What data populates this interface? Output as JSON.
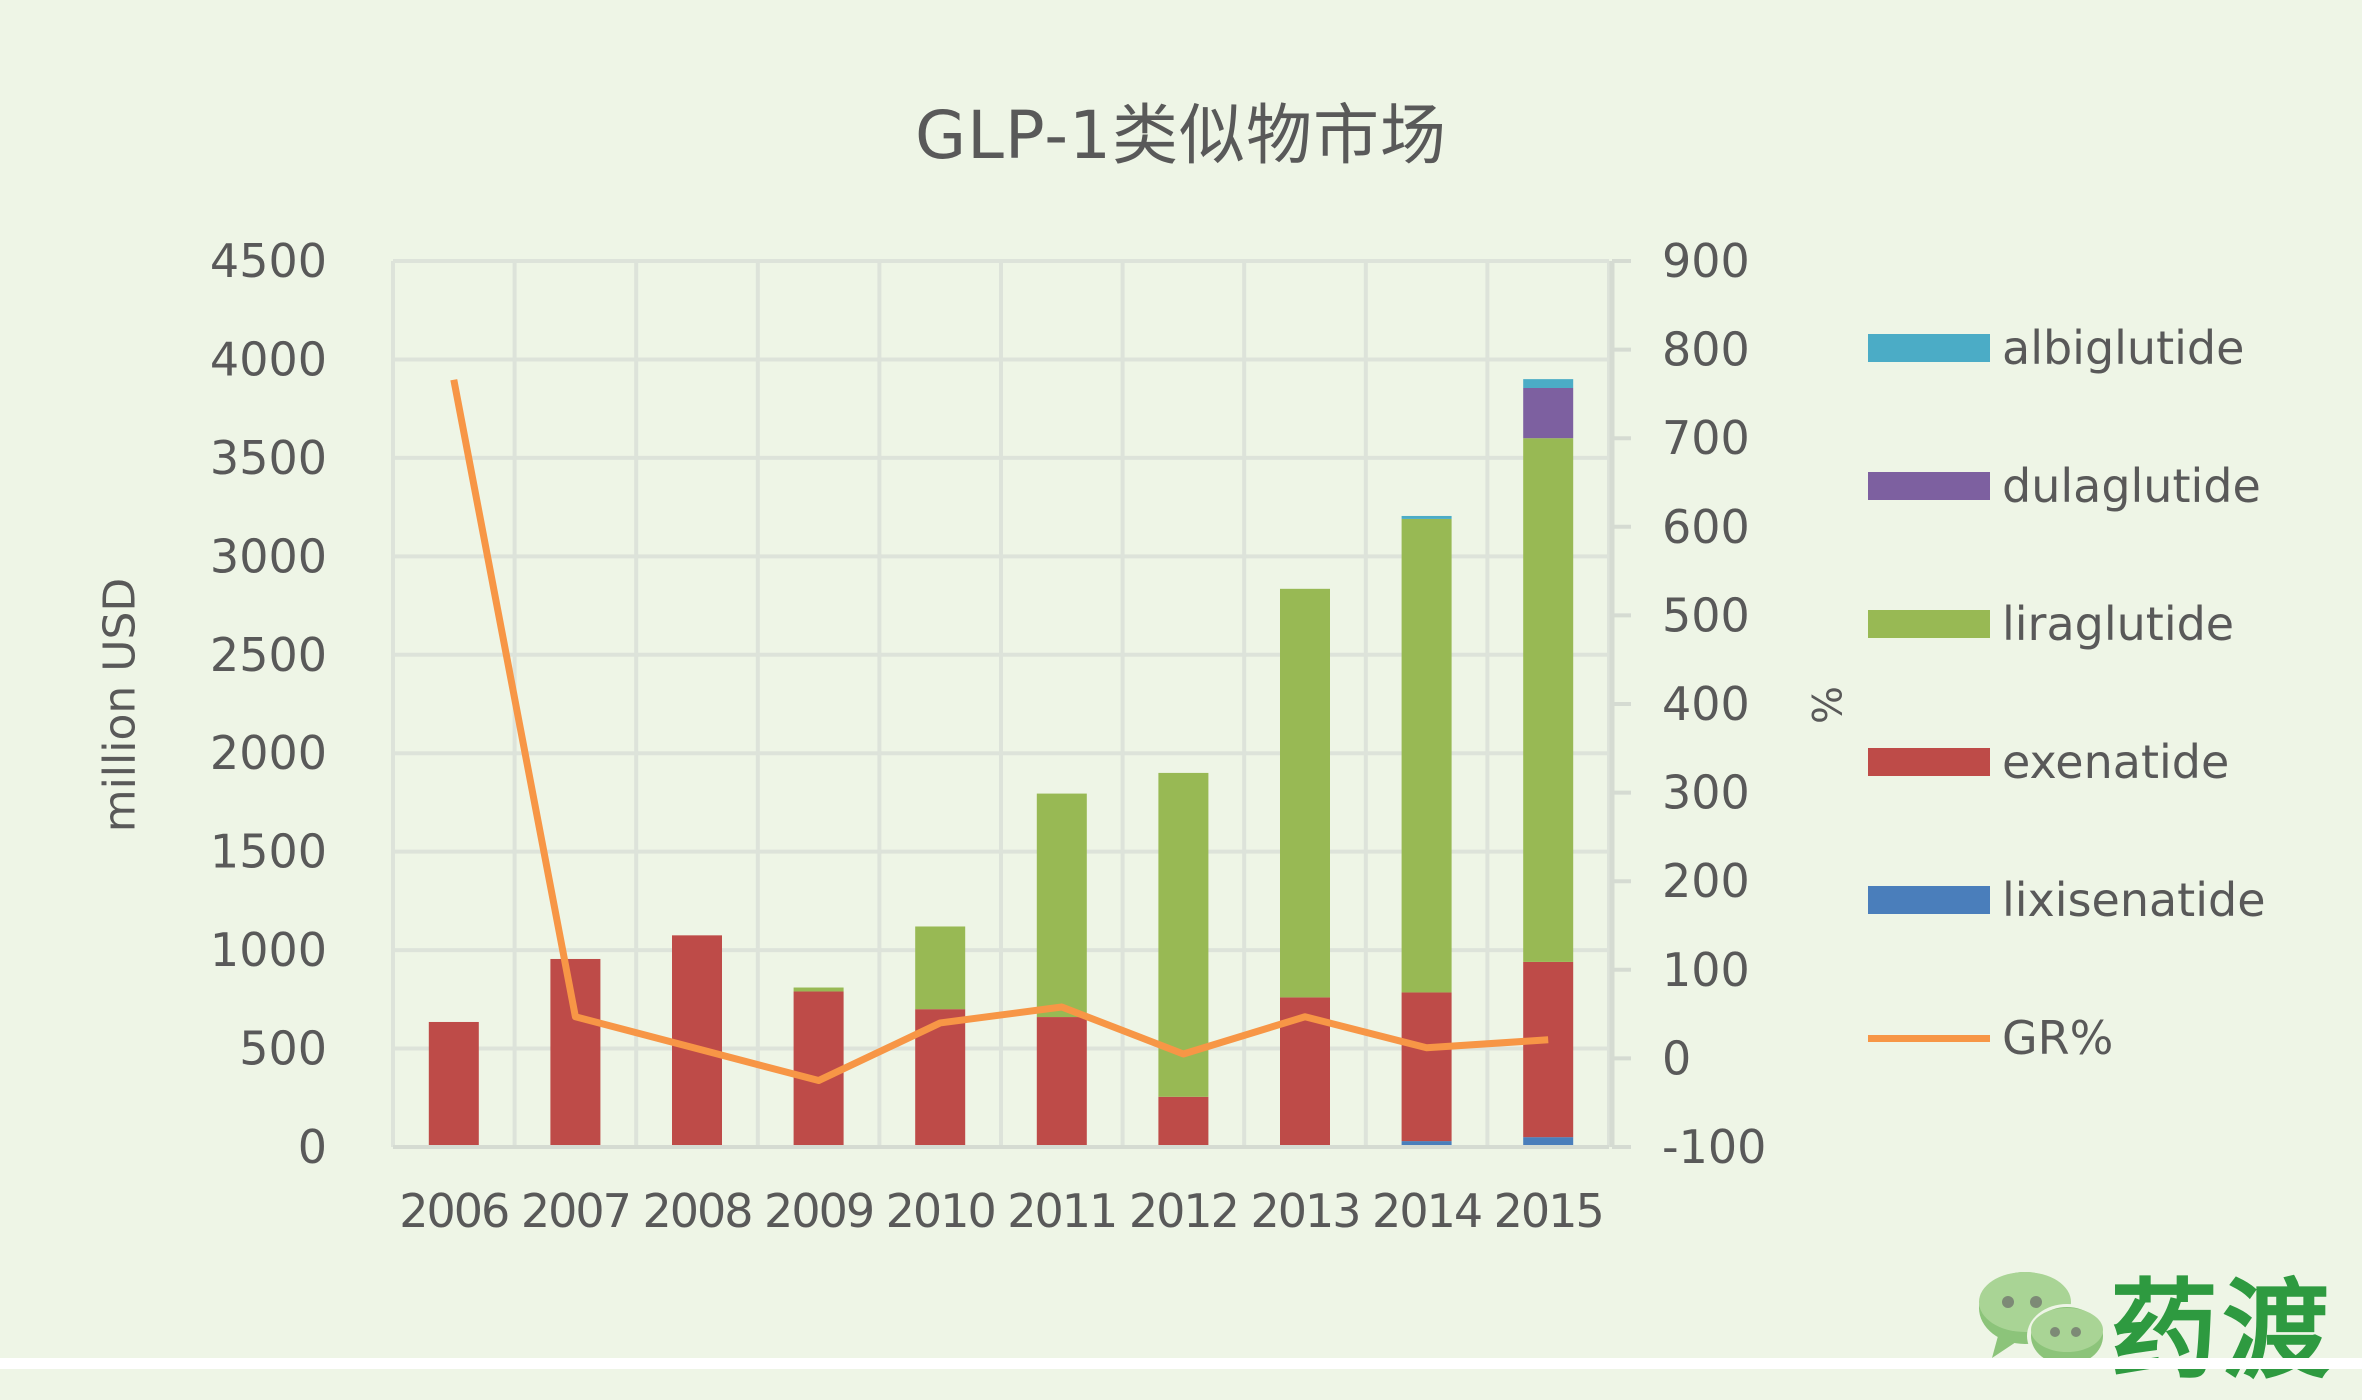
{
  "chart_data": {
    "type": "bar",
    "subtype": "stacked bar with line on secondary axis",
    "title": "GLP-1类似物市场",
    "xlabel": "",
    "ylabel": "million USD",
    "y2label": "%",
    "categories": [
      "2006",
      "2007",
      "2008",
      "2009",
      "2010",
      "2011",
      "2012",
      "2013",
      "2014",
      "2015"
    ],
    "ylim": [
      0,
      4500
    ],
    "yticks": [
      0,
      500,
      1000,
      1500,
      2000,
      2500,
      3000,
      3500,
      4000,
      4500
    ],
    "y2lim": [
      -100,
      900
    ],
    "y2ticks": [
      -100,
      0,
      100,
      200,
      300,
      400,
      500,
      600,
      700,
      800,
      900
    ],
    "grid": true,
    "legend_position": "right",
    "series": [
      {
        "name": "lixisenatide",
        "type": "bar",
        "axis": "left",
        "color": "#4a7ebb",
        "values": [
          0,
          0,
          0,
          0,
          0,
          0,
          0,
          0,
          30,
          50
        ]
      },
      {
        "name": "exenatide",
        "type": "bar",
        "axis": "left",
        "color": "#be4b48",
        "values": [
          635,
          955,
          1075,
          790,
          700,
          660,
          255,
          760,
          755,
          890
        ]
      },
      {
        "name": "liraglutide",
        "type": "bar",
        "axis": "left",
        "color": "#98b954",
        "values": [
          0,
          0,
          0,
          20,
          420,
          1135,
          1645,
          2075,
          2405,
          2660
        ]
      },
      {
        "name": "dulaglutide",
        "type": "bar",
        "axis": "left",
        "color": "#7d60a0",
        "values": [
          0,
          0,
          0,
          0,
          0,
          0,
          0,
          0,
          0,
          255
        ]
      },
      {
        "name": "albiglutide",
        "type": "bar",
        "axis": "left",
        "color": "#4bacc6",
        "values": [
          0,
          0,
          0,
          0,
          0,
          0,
          0,
          0,
          15,
          45
        ]
      },
      {
        "name": "GR%",
        "type": "line",
        "axis": "right",
        "color": "#f79646",
        "values": [
          766,
          47,
          11,
          -25,
          40,
          58,
          5,
          47,
          12,
          21
        ]
      }
    ]
  },
  "legend": {
    "items": [
      {
        "label": "albiglutide",
        "color": "#4bacc6",
        "kind": "bar"
      },
      {
        "label": "dulaglutide",
        "color": "#7d60a0",
        "kind": "bar"
      },
      {
        "label": "liraglutide",
        "color": "#98b954",
        "kind": "bar"
      },
      {
        "label": "exenatide",
        "color": "#be4b48",
        "kind": "bar"
      },
      {
        "label": "lixisenatide",
        "color": "#4a7ebb",
        "kind": "bar"
      },
      {
        "label": "GR%",
        "color": "#f79646",
        "kind": "line"
      }
    ]
  },
  "watermark": {
    "text": "药渡",
    "icon": "wechat-chat-bubbles-icon"
  }
}
